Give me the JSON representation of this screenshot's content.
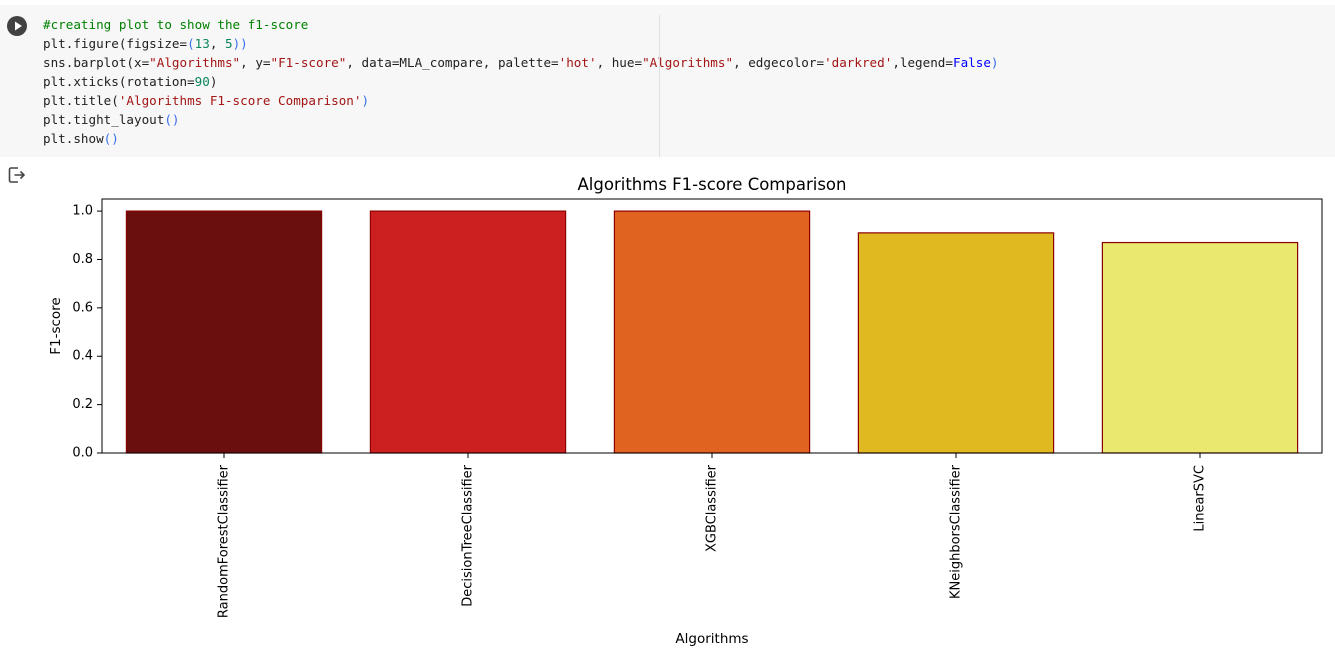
{
  "notebook": {
    "code_lines": [
      [
        {
          "t": "#creating plot to show the f1-score",
          "c": "cm"
        }
      ],
      [
        {
          "t": "plt.figure(figsize="
        },
        {
          "t": "(",
          "c": "br"
        },
        {
          "t": "13",
          "c": "nu"
        },
        {
          "t": ", "
        },
        {
          "t": "5",
          "c": "nu"
        },
        {
          "t": "))",
          "c": "br"
        }
      ],
      [
        {
          "t": "sns.barplot(x="
        },
        {
          "t": "\"Algorithms\"",
          "c": "st"
        },
        {
          "t": ", y="
        },
        {
          "t": "\"F1-score\"",
          "c": "st"
        },
        {
          "t": ", data=MLA_compare, palette="
        },
        {
          "t": "'hot'",
          "c": "st"
        },
        {
          "t": ", hue="
        },
        {
          "t": "\"Algorithms\"",
          "c": "st"
        },
        {
          "t": ", edgecolor="
        },
        {
          "t": "'darkred'",
          "c": "st"
        },
        {
          "t": ",legend="
        },
        {
          "t": "False",
          "c": "kw"
        },
        {
          "t": ")",
          "c": "br"
        }
      ],
      [
        {
          "t": "plt.xticks(rotation="
        },
        {
          "t": "90",
          "c": "nu"
        },
        {
          "t": ")"
        }
      ],
      [
        {
          "t": "plt.title("
        },
        {
          "t": "'Algorithms F1-score Comparison'",
          "c": "st"
        },
        {
          "t": ")",
          "c": "br"
        }
      ],
      [
        {
          "t": "plt.tight_layout"
        },
        {
          "t": "()",
          "c": "br"
        }
      ],
      [
        {
          "t": "plt.show"
        },
        {
          "t": "()",
          "c": "br"
        }
      ]
    ],
    "icons": {
      "run": "play-circle-icon",
      "output": "output-redirect-icon"
    }
  },
  "chart_data": {
    "type": "bar",
    "title": "Algorithms F1-score Comparison",
    "xlabel": "Algorithms",
    "ylabel": "F1-score",
    "categories": [
      "RandomForestClassifier",
      "DecisionTreeClassifier",
      "XGBClassifier",
      "KNeighborsClassifier",
      "LinearSVC"
    ],
    "values": [
      1.0,
      1.0,
      1.0,
      0.91,
      0.87
    ],
    "colors": [
      "#6b0e0e",
      "#cc1f1f",
      "#e06420",
      "#e0b820",
      "#eae86e"
    ],
    "edgecolor": "#8b0000",
    "ylim": [
      0,
      1.05
    ],
    "yticks": [
      "0.0",
      "0.2",
      "0.4",
      "0.6",
      "0.8",
      "1.0"
    ],
    "grid": false,
    "legend": false
  }
}
